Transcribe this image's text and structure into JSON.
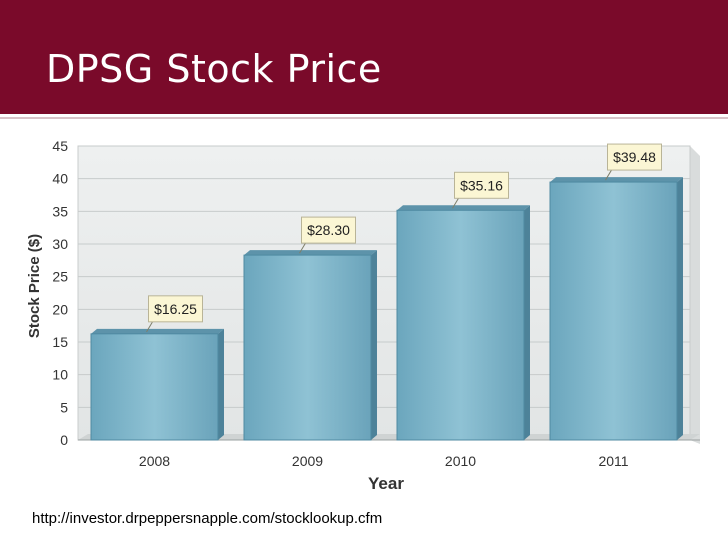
{
  "slide": {
    "title": "DPSG Stock Price",
    "source": "http://investor.drpeppersnapple.com/stocklookup.cfm"
  },
  "colors": {
    "header": "#7a0a2a",
    "bar_fill": "#7fb4c8",
    "bar_edge": "#4f8aa2",
    "label_bg": "#fbf6d4"
  },
  "chart_data": {
    "type": "bar",
    "title": "",
    "xlabel": "Year",
    "ylabel": "Stock Price ($)",
    "categories": [
      "2008",
      "2009",
      "2010",
      "2011"
    ],
    "values": [
      16.25,
      28.3,
      35.16,
      39.48
    ],
    "data_labels": [
      "$16.25",
      "$28.30",
      "$35.16",
      "$39.48"
    ],
    "ylim": [
      0,
      45
    ],
    "yticks": [
      0,
      5,
      10,
      15,
      20,
      25,
      30,
      35,
      40,
      45
    ],
    "grid": true,
    "legend": "none"
  }
}
